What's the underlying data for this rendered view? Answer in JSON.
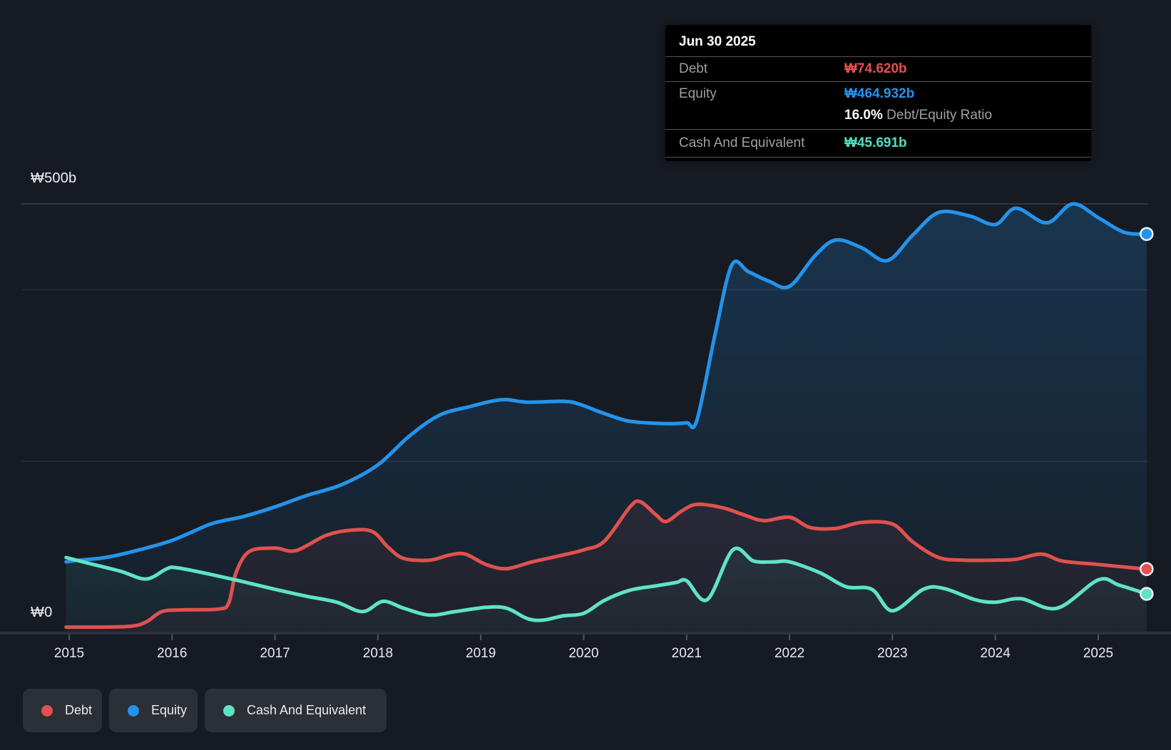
{
  "axis": {
    "y_label_top": "₩500b",
    "y_label_zero": "₩0"
  },
  "tooltip": {
    "title": "Jun 30 2025",
    "debt_label": "Debt",
    "debt_value": "₩74.620b",
    "equity_label": "Equity",
    "equity_value": "₩464.932b",
    "ratio_value": "16.0%",
    "ratio_label": "Debt/Equity Ratio",
    "cash_label": "Cash And Equivalent",
    "cash_value": "₩45.691b"
  },
  "legend": {
    "items": [
      {
        "label": "Debt",
        "color": "#e0514f"
      },
      {
        "label": "Equity",
        "color": "#2493eb"
      },
      {
        "label": "Cash And Equivalent",
        "color": "#5fe3c6"
      }
    ]
  },
  "chart_data": {
    "type": "area",
    "legend_position": "bottom-left",
    "x_axis": {
      "unit": "year",
      "ticks": [
        "2015",
        "2016",
        "2017",
        "2018",
        "2019",
        "2020",
        "2021",
        "2022",
        "2023",
        "2024",
        "2025"
      ],
      "range": [
        2014.97,
        2025.5
      ]
    },
    "y_axis": {
      "unit": "₩ billions",
      "range": [
        0,
        500
      ],
      "labeled_ticks": [
        {
          "value": 500,
          "label": "₩500b"
        },
        {
          "value": 0,
          "label": "₩0"
        }
      ],
      "gridlines": [
        500,
        400,
        200,
        0
      ]
    },
    "series": [
      {
        "name": "Debt",
        "color": "#e0514f",
        "end_label": "₩74.620b",
        "points": [
          [
            2014.97,
            7
          ],
          [
            2015.3,
            7
          ],
          [
            2015.6,
            8
          ],
          [
            2015.75,
            13
          ],
          [
            2015.9,
            25
          ],
          [
            2016.1,
            27
          ],
          [
            2016.45,
            28
          ],
          [
            2016.55,
            35
          ],
          [
            2016.62,
            70
          ],
          [
            2016.75,
            95
          ],
          [
            2017.0,
            99
          ],
          [
            2017.2,
            96
          ],
          [
            2017.5,
            114
          ],
          [
            2017.75,
            120
          ],
          [
            2017.95,
            118
          ],
          [
            2018.1,
            100
          ],
          [
            2018.25,
            87
          ],
          [
            2018.5,
            85
          ],
          [
            2018.7,
            91
          ],
          [
            2018.85,
            92
          ],
          [
            2019.05,
            80
          ],
          [
            2019.25,
            75
          ],
          [
            2019.5,
            83
          ],
          [
            2019.8,
            91
          ],
          [
            2020.0,
            97
          ],
          [
            2020.2,
            107
          ],
          [
            2020.45,
            147
          ],
          [
            2020.55,
            153
          ],
          [
            2020.7,
            138
          ],
          [
            2020.8,
            130
          ],
          [
            2020.95,
            142
          ],
          [
            2021.1,
            150
          ],
          [
            2021.35,
            146
          ],
          [
            2021.55,
            138
          ],
          [
            2021.75,
            131
          ],
          [
            2022.0,
            135
          ],
          [
            2022.2,
            123
          ],
          [
            2022.45,
            122
          ],
          [
            2022.7,
            129
          ],
          [
            2023.0,
            127
          ],
          [
            2023.2,
            106
          ],
          [
            2023.45,
            88
          ],
          [
            2023.7,
            85
          ],
          [
            2024.0,
            85
          ],
          [
            2024.2,
            86
          ],
          [
            2024.45,
            92
          ],
          [
            2024.65,
            84
          ],
          [
            2025.0,
            80
          ],
          [
            2025.25,
            77
          ],
          [
            2025.47,
            74.62
          ]
        ]
      },
      {
        "name": "Equity",
        "color": "#2493eb",
        "end_label": "₩464.932b",
        "points": [
          [
            2014.97,
            83
          ],
          [
            2015.1,
            85
          ],
          [
            2015.35,
            88
          ],
          [
            2015.65,
            96
          ],
          [
            2016.0,
            108
          ],
          [
            2016.35,
            126
          ],
          [
            2016.5,
            131
          ],
          [
            2016.7,
            136
          ],
          [
            2017.0,
            147
          ],
          [
            2017.3,
            160
          ],
          [
            2017.65,
            173
          ],
          [
            2018.0,
            196
          ],
          [
            2018.3,
            229
          ],
          [
            2018.6,
            254
          ],
          [
            2018.9,
            264
          ],
          [
            2019.1,
            270
          ],
          [
            2019.25,
            272
          ],
          [
            2019.45,
            269
          ],
          [
            2019.8,
            270
          ],
          [
            2019.95,
            267
          ],
          [
            2020.15,
            258
          ],
          [
            2020.4,
            248
          ],
          [
            2020.6,
            245
          ],
          [
            2020.85,
            244
          ],
          [
            2021.0,
            245
          ],
          [
            2021.1,
            248
          ],
          [
            2021.28,
            350
          ],
          [
            2021.44,
            429
          ],
          [
            2021.6,
            421
          ],
          [
            2021.8,
            410
          ],
          [
            2022.0,
            404
          ],
          [
            2022.25,
            440
          ],
          [
            2022.45,
            458
          ],
          [
            2022.7,
            449
          ],
          [
            2022.95,
            434
          ],
          [
            2023.2,
            464
          ],
          [
            2023.45,
            490
          ],
          [
            2023.75,
            486
          ],
          [
            2024.0,
            476
          ],
          [
            2024.2,
            495
          ],
          [
            2024.5,
            478
          ],
          [
            2024.75,
            500
          ],
          [
            2025.0,
            484
          ],
          [
            2025.25,
            467
          ],
          [
            2025.47,
            464.932
          ]
        ]
      },
      {
        "name": "Cash And Equivalent",
        "color": "#5fe3c6",
        "end_label": "₩45.691b",
        "points": [
          [
            2014.97,
            88
          ],
          [
            2015.2,
            81
          ],
          [
            2015.5,
            72
          ],
          [
            2015.75,
            63
          ],
          [
            2015.95,
            75
          ],
          [
            2016.05,
            76
          ],
          [
            2016.35,
            69
          ],
          [
            2016.65,
            61
          ],
          [
            2017.0,
            51
          ],
          [
            2017.3,
            43
          ],
          [
            2017.6,
            36
          ],
          [
            2017.85,
            25
          ],
          [
            2018.05,
            37
          ],
          [
            2018.25,
            29
          ],
          [
            2018.5,
            21
          ],
          [
            2018.75,
            25
          ],
          [
            2019.05,
            30
          ],
          [
            2019.25,
            29
          ],
          [
            2019.45,
            17
          ],
          [
            2019.6,
            15
          ],
          [
            2019.8,
            20
          ],
          [
            2020.0,
            23
          ],
          [
            2020.2,
            38
          ],
          [
            2020.45,
            50
          ],
          [
            2020.7,
            55
          ],
          [
            2020.9,
            59
          ],
          [
            2021.0,
            61
          ],
          [
            2021.2,
            39
          ],
          [
            2021.45,
            97
          ],
          [
            2021.65,
            84
          ],
          [
            2021.85,
            83
          ],
          [
            2022.0,
            83
          ],
          [
            2022.3,
            70
          ],
          [
            2022.55,
            54
          ],
          [
            2022.8,
            51
          ],
          [
            2023.0,
            26
          ],
          [
            2023.3,
            51
          ],
          [
            2023.5,
            52
          ],
          [
            2023.8,
            39
          ],
          [
            2024.0,
            36
          ],
          [
            2024.25,
            40
          ],
          [
            2024.6,
            29
          ],
          [
            2025.0,
            62
          ],
          [
            2025.2,
            56
          ],
          [
            2025.47,
            45.691
          ]
        ]
      }
    ]
  }
}
